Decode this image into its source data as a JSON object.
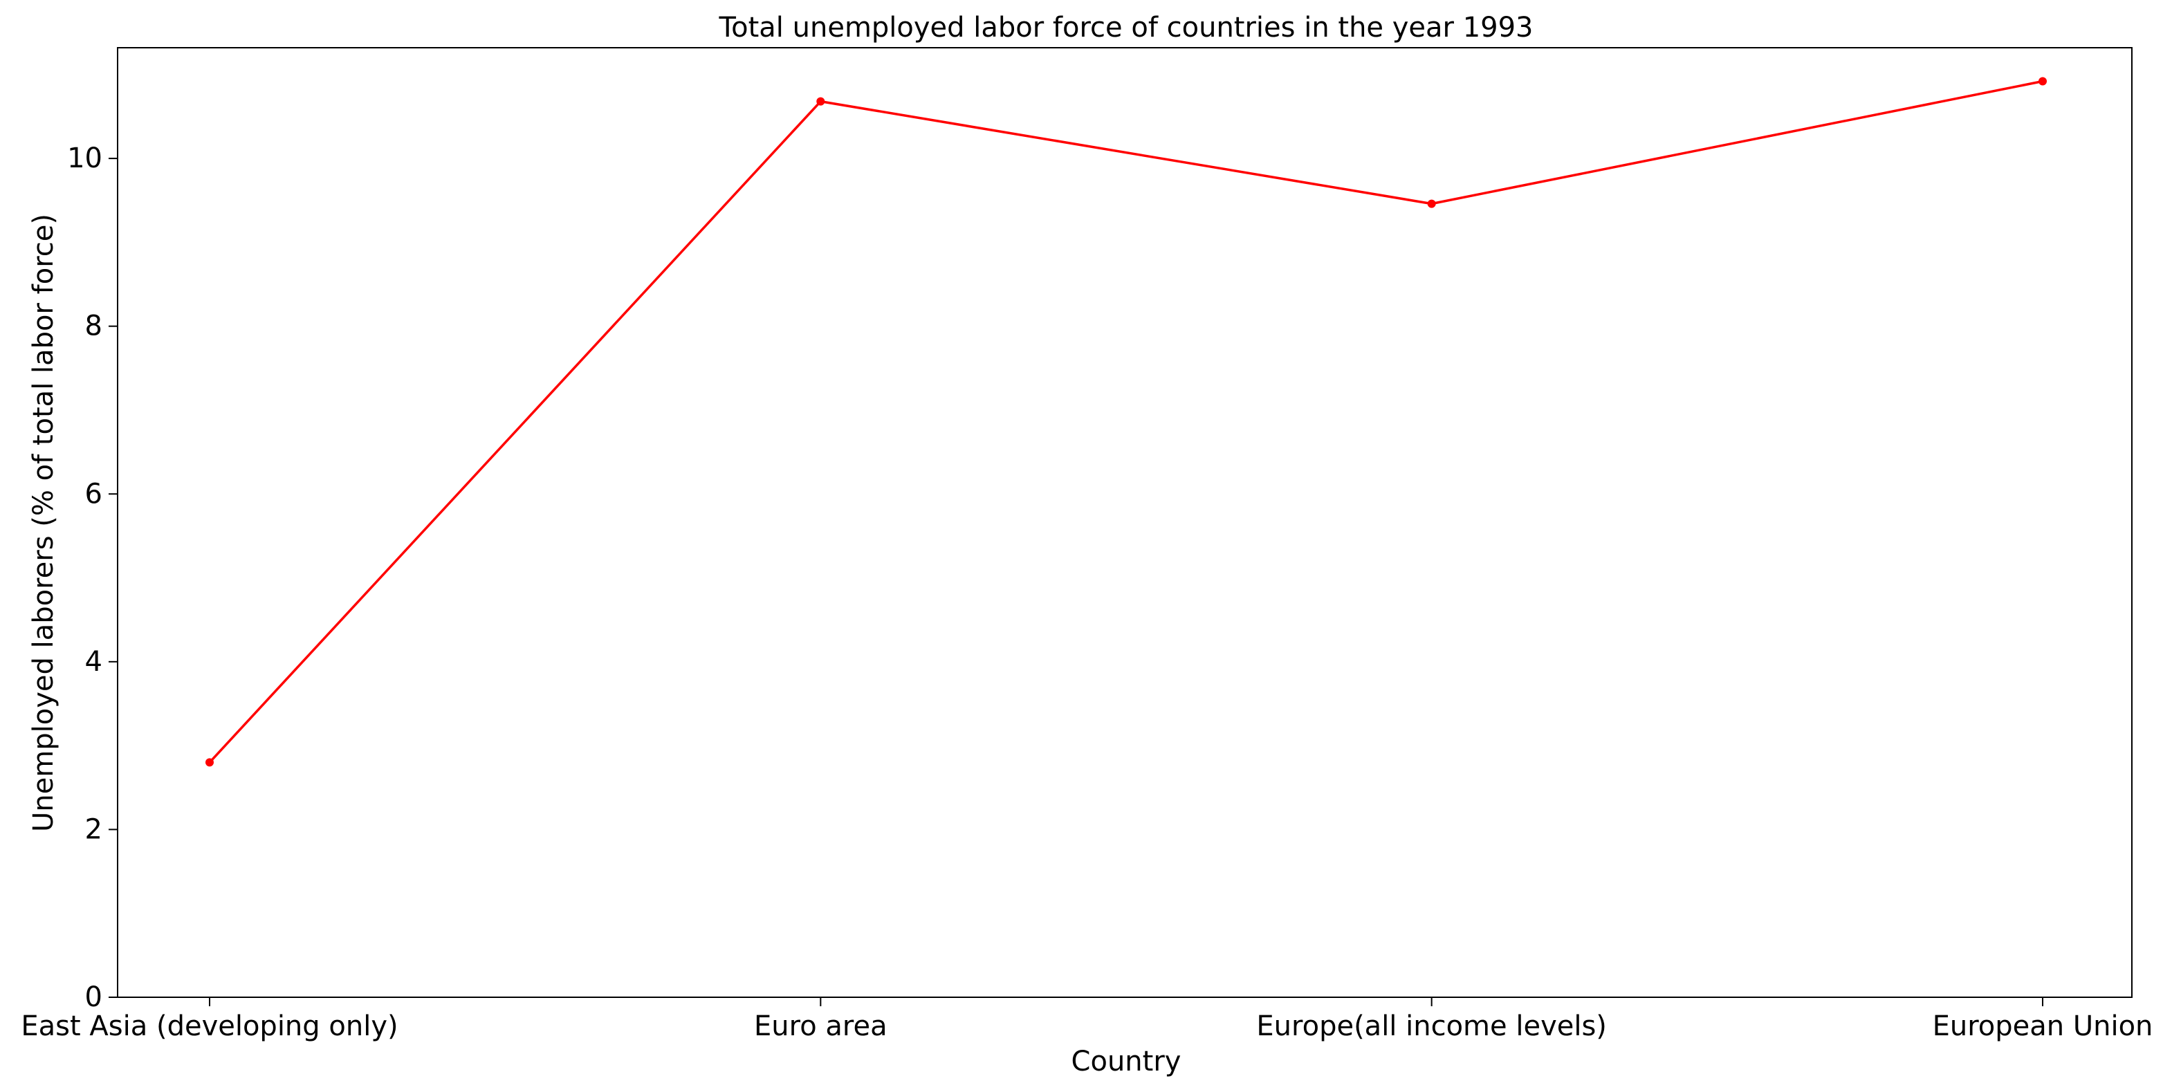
{
  "chart_data": {
    "type": "line",
    "title": "Total unemployed labor force of countries in the year 1993",
    "xlabel": "Country",
    "ylabel": "Unemployed laborers (% of total labor force)",
    "categories": [
      "East Asia (developing only)",
      "Euro area",
      "Europe(all income levels)",
      "European Union"
    ],
    "series": [
      {
        "values": [
          2.8,
          10.68,
          9.46,
          10.92
        ],
        "color": "#ff0000",
        "marker": "circle"
      }
    ],
    "ylim": [
      0,
      11.32
    ],
    "yticks": [
      0,
      2,
      4,
      6,
      8,
      10
    ],
    "grid": false,
    "legend": "none"
  }
}
